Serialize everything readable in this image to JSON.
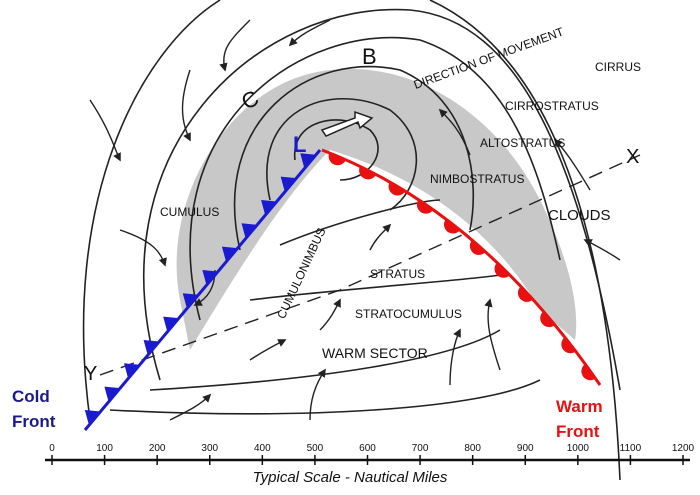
{
  "diagram": {
    "labels": {
      "direction": "DIRECTION OF MOVEMENT",
      "cirrus": "CIRRUS",
      "cirrostratus": "CIRROSTRATUS",
      "altostratus": "ALTOSTRATUS",
      "nimbostratus": "NIMBOSTRATUS",
      "clouds": "CLOUDS",
      "cumulus": "CUMULUS",
      "cumulonimbus": "CUMULONIMBUS",
      "stratus": "STRATUS",
      "stratocumulus": "STRATOCUMULUS",
      "warm_sector": "WARM SECTOR",
      "b": "B",
      "c": "C",
      "low": "L",
      "x": "X",
      "y": "Y"
    },
    "cold_front": [
      "Cold",
      "Front"
    ],
    "warm_front": [
      "Warm",
      "Front"
    ],
    "scale": {
      "ticks": [
        0,
        100,
        200,
        300,
        400,
        500,
        600,
        700,
        800,
        900,
        1000,
        1100,
        1200
      ],
      "title": "Typical Scale - Nautical Miles"
    }
  }
}
